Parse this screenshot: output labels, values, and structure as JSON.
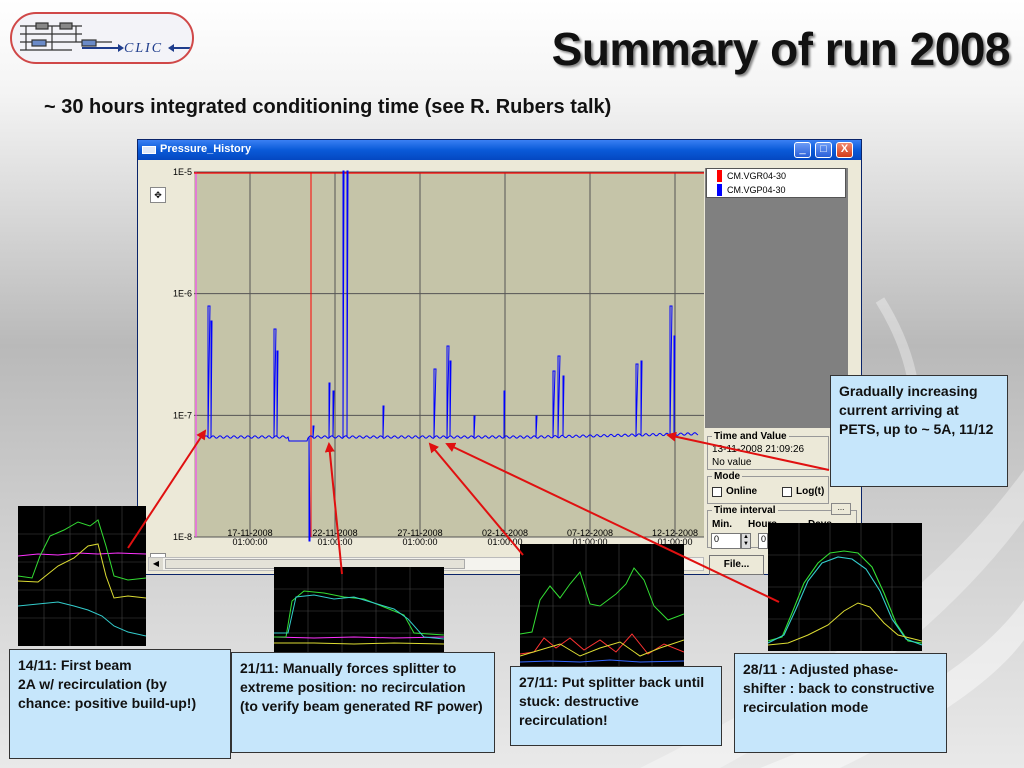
{
  "slide": {
    "title": "Summary of  run 2008",
    "subtitle": "~ 30 hours integrated conditioning time (see R. Rubers talk)",
    "logo_text": "CLIC"
  },
  "window": {
    "title": "Pressure_History",
    "controls": {
      "minimize": "_",
      "maximize": "□",
      "close": "X"
    }
  },
  "chart_data": {
    "type": "line",
    "title": "",
    "y_scale": "log",
    "ylim": [
      1e-08,
      1e-05
    ],
    "y_tick_labels": [
      "1E-5",
      "1E-6",
      "1E-7",
      "1E-8"
    ],
    "x_tick_labels": [
      [
        "17-11-2008",
        "01:00:00"
      ],
      [
        "22-11-2008",
        "01:00:00"
      ],
      [
        "27-11-2008",
        "01:00:00"
      ],
      [
        "02-12-2008",
        "01:00:00"
      ],
      [
        "07-12-2008",
        "01:00:00"
      ],
      [
        "12-12-2008",
        "01:00:00"
      ]
    ],
    "series": [
      {
        "name": "CM.VGR04-30",
        "color": "#ff0000"
      },
      {
        "name": "CM.VGP04-30",
        "color": "#0000ff"
      }
    ],
    "grid": true,
    "legend_position": "top-right"
  },
  "side_panel": {
    "time_value": {
      "title": "Time and Value",
      "timestamp": "13-11-2008 21:09:26",
      "value": "No value"
    },
    "mode": {
      "title": "Mode",
      "online": "Online",
      "log": "Log(t)"
    },
    "time_interval": {
      "title": "Time interval",
      "min": "Min.",
      "hours": "Hours",
      "days": "Days",
      "min_value": "0",
      "hours_value": "0",
      "dots": "..."
    },
    "file_button": "File..."
  },
  "callouts": {
    "first_beam": "14/11: First beam\n2A w/ recirculation (by chance: positive build-up!)",
    "splitter_forced": "21/11: Manually forces splitter to extreme position: no recirculation (to verify beam generated RF power)",
    "splitter_back": "27/11: Put splitter back until stuck: destructive recirculation!",
    "phase_shifter": "28/11 : Adjusted phase-shifter : back to constructive recirculation mode",
    "gradual": "Gradually increasing current arriving at PETS, up to ~ 5A, 11/12"
  },
  "colors": {
    "callout_bg": "#c6e6fb",
    "arrow": "#e01010",
    "titlebar": "#0a5ad8"
  }
}
